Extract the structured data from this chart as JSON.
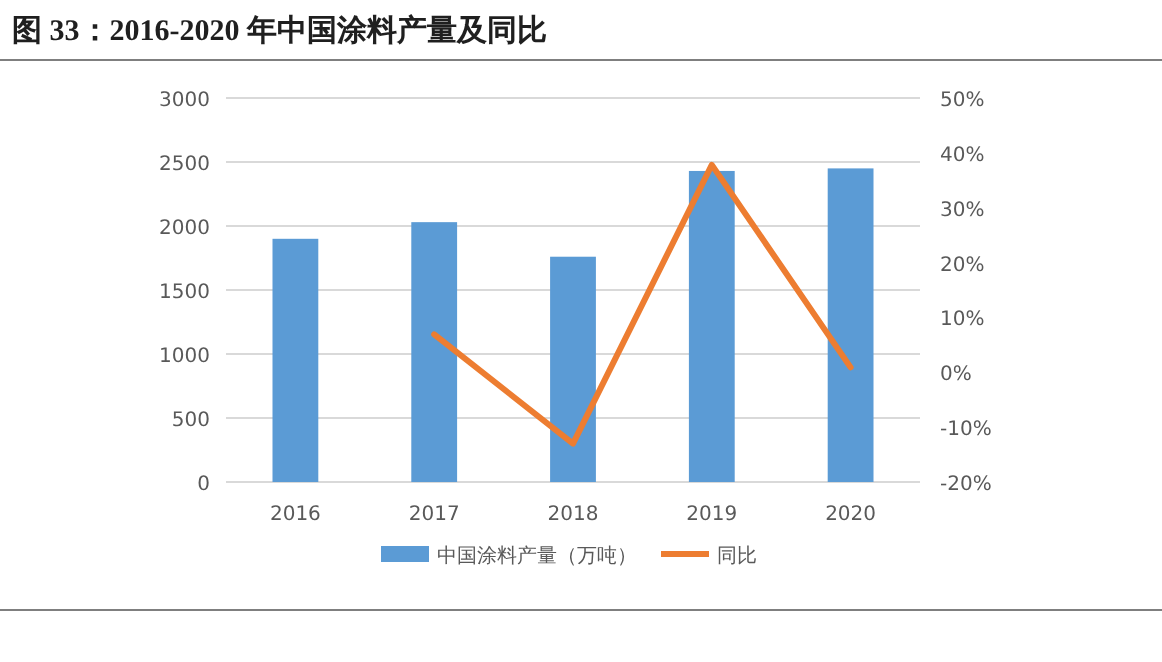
{
  "chart_data": {
    "type": "bar",
    "title": "图 33：2016-2020 年中国涂料产量及同比",
    "categories": [
      "2016",
      "2017",
      "2018",
      "2019",
      "2020"
    ],
    "series": [
      {
        "name": "中国涂料产量（万吨）",
        "color": "#5b9bd5",
        "values": [
          1900,
          2030,
          1760,
          2430,
          2450
        ]
      },
      {
        "name": "同比",
        "type": "line",
        "axis": "y2",
        "color": "#ed7d31",
        "values": [
          null,
          6.9,
          -13,
          37.8,
          0.9
        ]
      }
    ],
    "ylim": [
      0,
      3000
    ],
    "yticks": [
      0,
      500,
      1000,
      1500,
      2000,
      2500,
      3000
    ],
    "y2lim": [
      -20,
      50
    ],
    "y2ticks": [
      {
        "value": -20,
        "label": "-20%"
      },
      {
        "value": -10,
        "label": "-10%"
      },
      {
        "value": 0,
        "label": "0%"
      },
      {
        "value": 10,
        "label": "10%"
      },
      {
        "value": 20,
        "label": "20%"
      },
      {
        "value": 30,
        "label": "30%"
      },
      {
        "value": 40,
        "label": "40%"
      },
      {
        "value": 50,
        "label": "50%"
      }
    ],
    "grid": "y",
    "legend": "bottom",
    "marker": "none",
    "line_style": "solid"
  }
}
